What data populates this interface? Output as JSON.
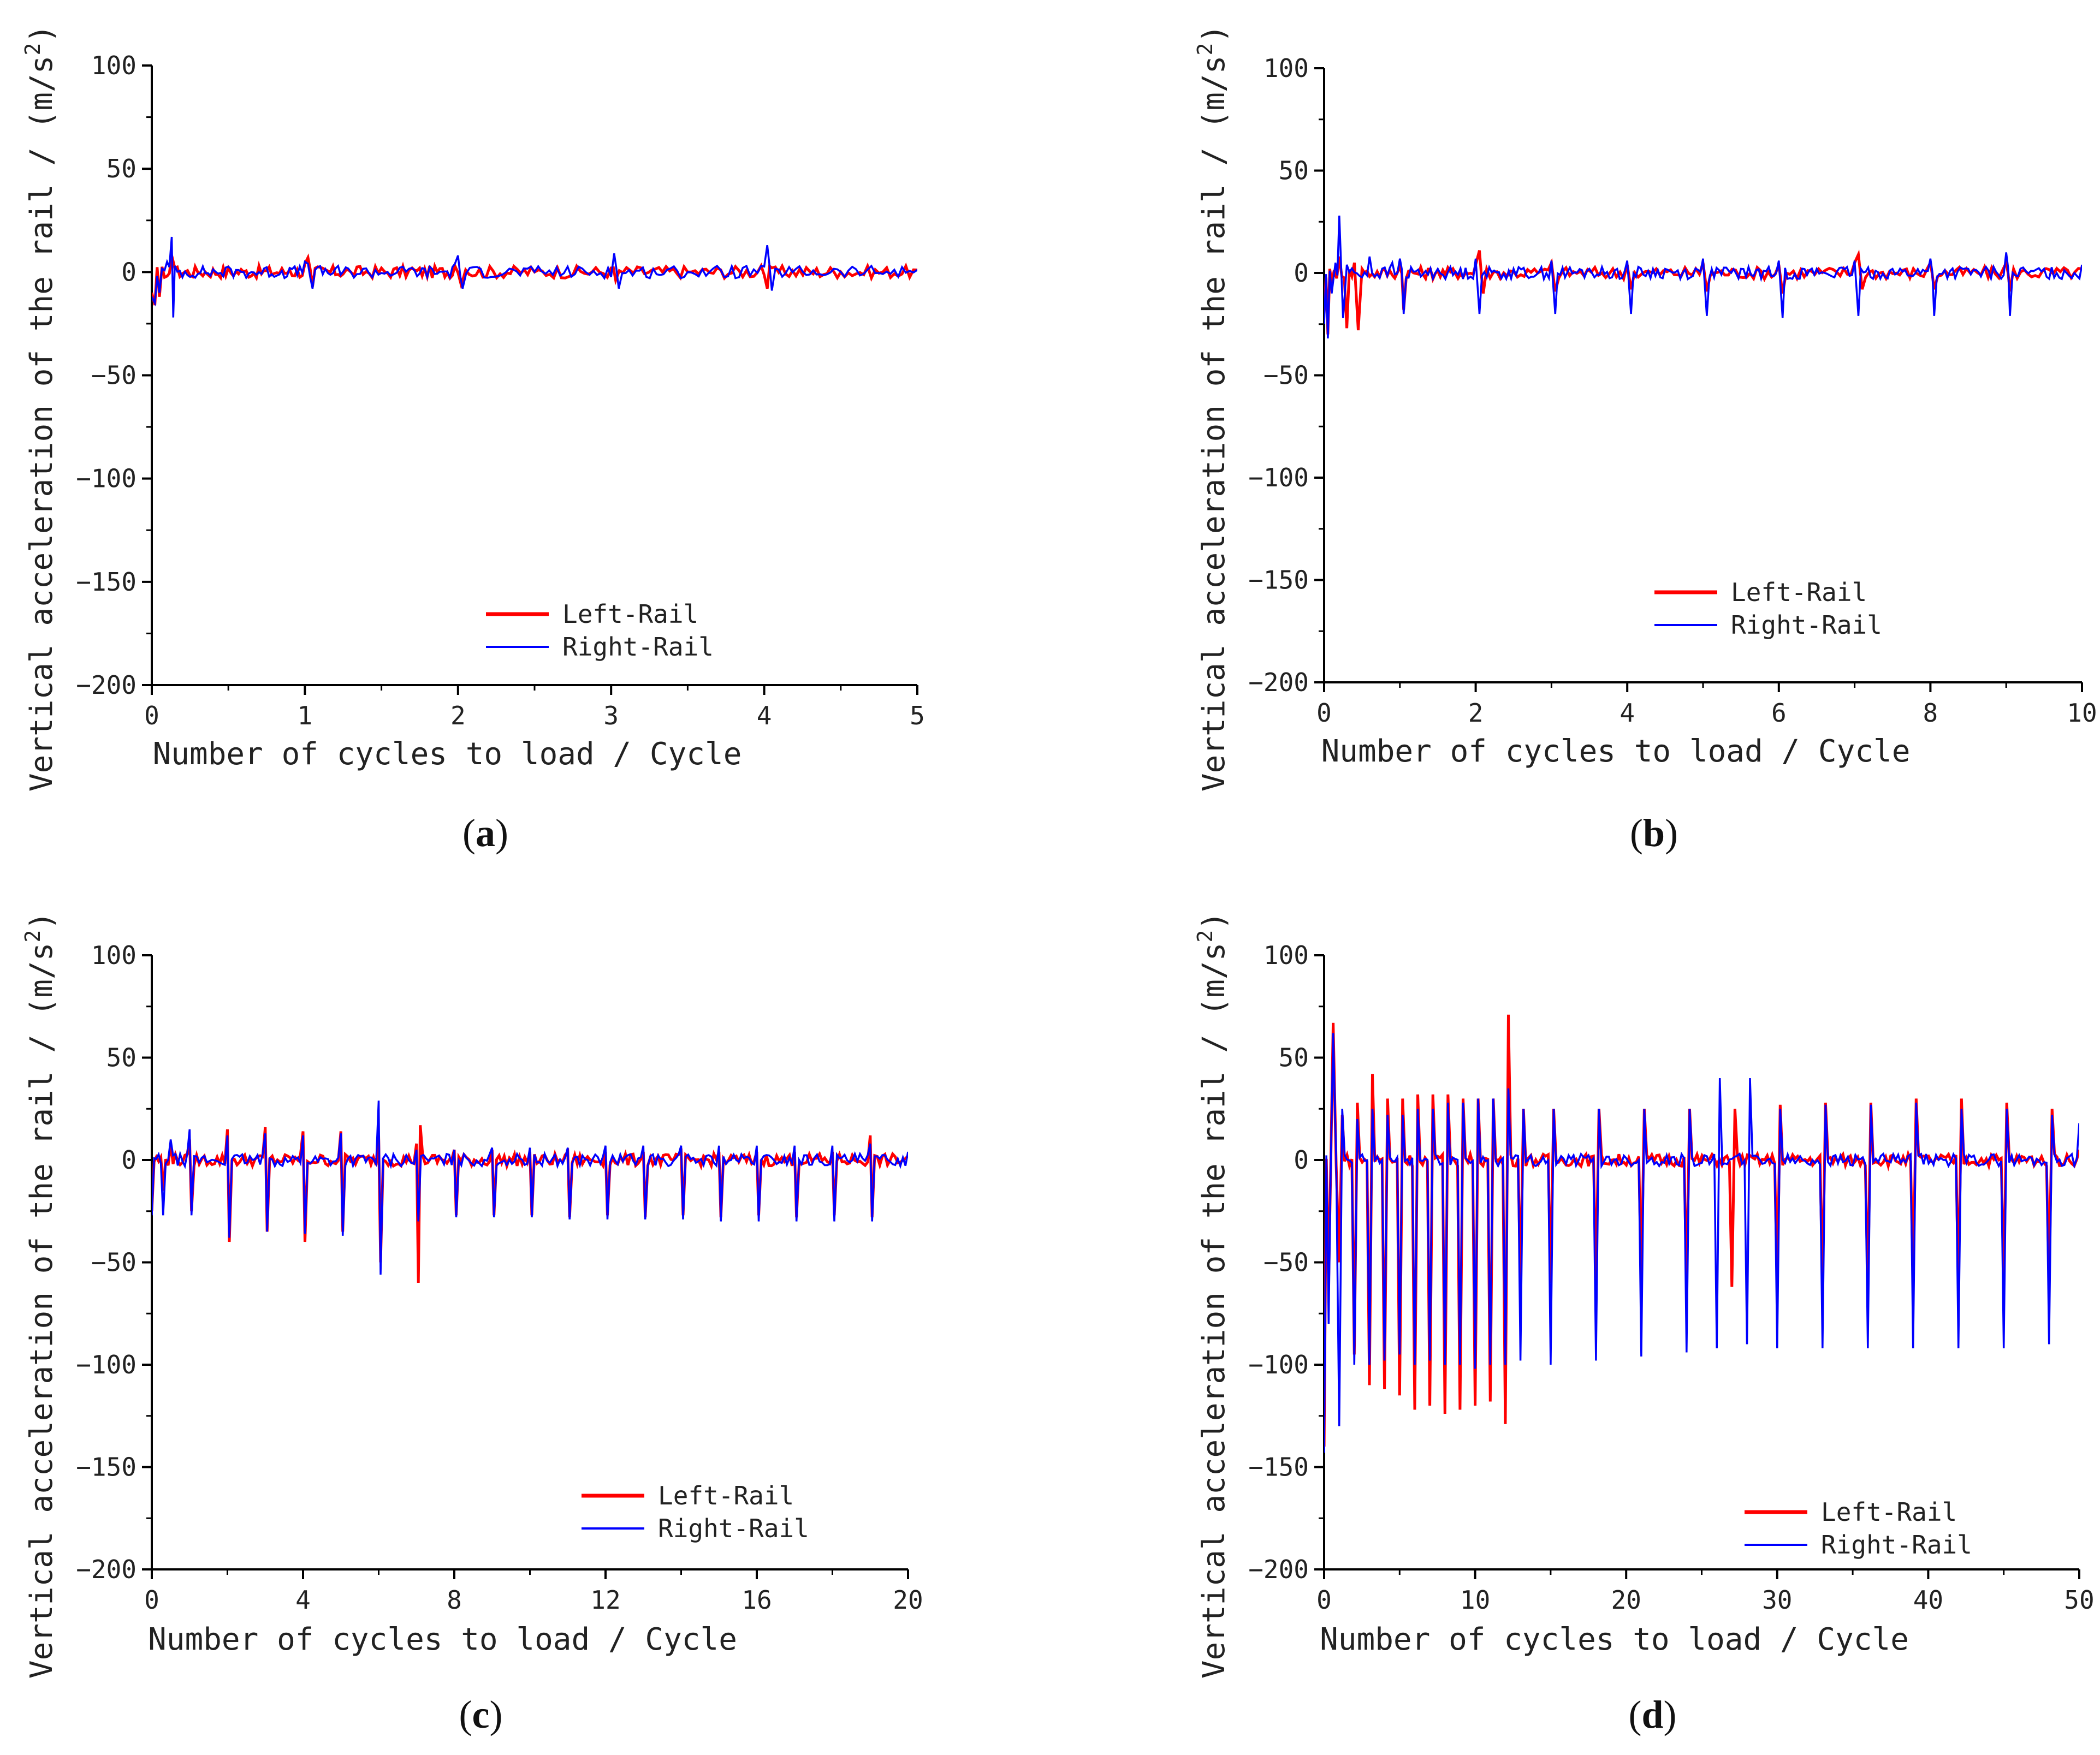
{
  "chart_data": [
    {
      "type": "line",
      "panel_label": "a",
      "xlabel": "Number of cycles to load / Cycle",
      "ylabel": "Vertical acceleration of the rail / (m/s",
      "ylabel_sup": "2",
      "ylabel_close": ")",
      "xlim": [
        0,
        5
      ],
      "ylim": [
        -200,
        100
      ],
      "xticks": [
        0,
        1,
        2,
        3,
        4,
        5
      ],
      "xtick_labels": [
        "0",
        "1",
        "2",
        "3",
        "4",
        "5"
      ],
      "yticks": [
        -200,
        -150,
        -100,
        -50,
        0,
        50,
        100
      ],
      "ytick_labels": [
        "−200",
        "−150",
        "−100",
        "−50",
        "0",
        "50",
        "100"
      ],
      "legend": [
        "Left-Rail",
        "Right-Rail"
      ],
      "legend_position": "lower-center",
      "grid": false,
      "series": [
        {
          "name": "Left-Rail",
          "color": "#ff0000",
          "x": [
            0,
            0.02,
            0.05,
            0.1,
            0.13,
            0.15,
            0.3,
            0.6,
            0.9,
            1.0,
            1.02,
            1.05,
            1.3,
            1.7,
            1.98,
            2.02,
            2.05,
            2.5,
            3.0,
            3.03,
            3.5,
            3.98,
            4.02,
            4.05,
            4.5,
            5.0
          ],
          "values": [
            -10,
            -16,
            -12,
            -2,
            8,
            2,
            0,
            0,
            1,
            4,
            7,
            -7,
            0,
            2,
            3,
            -6,
            1,
            0,
            2,
            -4,
            0,
            3,
            -8,
            2,
            0,
            1
          ]
        },
        {
          "name": "Right-Rail",
          "color": "#0000ff",
          "x": [
            0,
            0.02,
            0.05,
            0.1,
            0.13,
            0.14,
            0.15,
            0.3,
            0.6,
            0.9,
            1.0,
            1.02,
            1.05,
            1.3,
            1.7,
            1.98,
            2.0,
            2.03,
            2.5,
            2.98,
            3.02,
            3.05,
            3.5,
            3.98,
            4.02,
            4.05,
            4.5,
            5.0
          ],
          "values": [
            -12,
            -15,
            -10,
            5,
            17,
            -22,
            3,
            -1,
            0,
            2,
            5,
            4,
            -8,
            0,
            2,
            4,
            8,
            -8,
            0,
            2,
            9,
            -8,
            0,
            3,
            13,
            -9,
            0,
            1
          ]
        }
      ]
    },
    {
      "type": "line",
      "panel_label": "b",
      "xlabel": "Number of cycles to load / Cycle",
      "ylabel": "Vertical acceleration of the rail / (m/s",
      "ylabel_sup": "2",
      "ylabel_close": ")",
      "xlim": [
        0,
        10
      ],
      "ylim": [
        -200,
        100
      ],
      "xticks": [
        0,
        2,
        4,
        6,
        8,
        10
      ],
      "xtick_labels": [
        "0",
        "2",
        "4",
        "6",
        "8",
        "10"
      ],
      "yticks": [
        -200,
        -150,
        -100,
        -50,
        0,
        50,
        100
      ],
      "ytick_labels": [
        "−200",
        "−150",
        "−100",
        "−50",
        "0",
        "50",
        "100"
      ],
      "legend": [
        "Left-Rail",
        "Right-Rail"
      ],
      "legend_position": "lower-center",
      "grid": false,
      "series": [
        {
          "name": "Left-Rail",
          "color": "#ff0000",
          "x": [
            0,
            0.05,
            0.1,
            0.2,
            0.3,
            0.4,
            0.45,
            0.5,
            1.0,
            1.05,
            1.5,
            2.0,
            2.05,
            2.1,
            3.0,
            3.05,
            4.0,
            4.05,
            5.0,
            5.05,
            6.0,
            6.05,
            7.0,
            7.05,
            7.1,
            8.0,
            8.05,
            9.0,
            9.05,
            10.0
          ],
          "values": [
            -20,
            -30,
            -5,
            8,
            -27,
            5,
            -28,
            2,
            3,
            -18,
            1,
            4,
            11,
            -10,
            5,
            -9,
            4,
            -8,
            5,
            -9,
            4,
            -10,
            5,
            9,
            -8,
            5,
            -8,
            5,
            -9,
            2
          ]
        },
        {
          "name": "Right-Rail",
          "color": "#0000ff",
          "x": [
            0,
            0.05,
            0.1,
            0.15,
            0.2,
            0.25,
            0.3,
            0.6,
            0.9,
            1.0,
            1.05,
            1.5,
            2.0,
            2.05,
            2.5,
            3.0,
            3.05,
            3.5,
            4.0,
            4.05,
            4.5,
            5.0,
            5.05,
            5.5,
            6.0,
            6.05,
            6.5,
            7.0,
            7.05,
            7.5,
            8.0,
            8.05,
            8.5,
            9.0,
            9.05,
            9.5,
            10.0
          ],
          "values": [
            -25,
            -32,
            -10,
            5,
            28,
            -22,
            4,
            8,
            5,
            7,
            -20,
            2,
            7,
            -20,
            2,
            6,
            -20,
            2,
            6,
            -20,
            2,
            7,
            -21,
            2,
            6,
            -22,
            2,
            6,
            -21,
            2,
            7,
            -21,
            2,
            10,
            -21,
            2,
            4
          ]
        }
      ]
    },
    {
      "type": "line",
      "panel_label": "c",
      "xlabel": "Number of cycles to load / Cycle",
      "ylabel": "Vertical acceleration of the rail / (m/s",
      "ylabel_sup": "2",
      "ylabel_close": ")",
      "xlim": [
        0,
        20
      ],
      "ylim": [
        -200,
        100
      ],
      "xticks": [
        0,
        4,
        8,
        12,
        16,
        20
      ],
      "xtick_labels": [
        "0",
        "4",
        "8",
        "12",
        "16",
        "20"
      ],
      "yticks": [
        -200,
        -150,
        -100,
        -50,
        0,
        50,
        100
      ],
      "ytick_labels": [
        "−200",
        "−150",
        "−100",
        "−50",
        "0",
        "50",
        "100"
      ],
      "legend": [
        "Left-Rail",
        "Right-Rail"
      ],
      "legend_position": "lower-center",
      "grid": false,
      "series": [
        {
          "name": "Left-Rail",
          "color": "#ff0000",
          "x": [
            0,
            0.3,
            0.5,
            1.0,
            1.05,
            2.0,
            2.05,
            3.0,
            3.05,
            4.0,
            4.05,
            5.0,
            5.05,
            6.0,
            6.05,
            7.0,
            7.05,
            7.1,
            8.0,
            8.05,
            9.0,
            9.05,
            10.0,
            10.05,
            11.0,
            11.05,
            12.0,
            12.05,
            13.0,
            13.05,
            14.0,
            14.05,
            15.0,
            15.05,
            16.0,
            16.05,
            17.0,
            17.05,
            18.0,
            18.05,
            19.0,
            19.05,
            20.0
          ],
          "values": [
            -25,
            -15,
            8,
            10,
            -25,
            15,
            -40,
            16,
            -35,
            14,
            -40,
            14,
            -35,
            12,
            -50,
            8,
            -60,
            17,
            5,
            -27,
            5,
            -27,
            4,
            -27,
            4,
            -28,
            4,
            -27,
            4,
            -28,
            4,
            -27,
            4,
            -28,
            4,
            -27,
            4,
            -28,
            4,
            -27,
            12,
            -28,
            2
          ]
        },
        {
          "name": "Right-Rail",
          "color": "#0000ff",
          "x": [
            0,
            0.3,
            0.5,
            1.0,
            1.05,
            2.0,
            2.05,
            3.0,
            3.05,
            4.0,
            4.05,
            5.0,
            5.05,
            6.0,
            6.05,
            7.0,
            7.05,
            8.0,
            8.05,
            9.0,
            9.05,
            10.0,
            10.05,
            11.0,
            11.05,
            12.0,
            12.05,
            13.0,
            13.05,
            14.0,
            14.05,
            15.0,
            15.05,
            16.0,
            16.05,
            17.0,
            17.05,
            18.0,
            18.05,
            19.0,
            19.05,
            20.0
          ],
          "values": [
            -27,
            -27,
            10,
            15,
            -27,
            12,
            -38,
            13,
            -35,
            12,
            -36,
            13,
            -37,
            29,
            -56,
            5,
            -30,
            5,
            -28,
            6,
            -28,
            6,
            -28,
            6,
            -29,
            7,
            -29,
            7,
            -29,
            7,
            -29,
            7,
            -30,
            7,
            -30,
            7,
            -30,
            7,
            -30,
            8,
            -30,
            4
          ]
        }
      ]
    },
    {
      "type": "line",
      "panel_label": "d",
      "xlabel": "Number of cycles to load / Cycle",
      "ylabel": "Vertical acceleration of the rail / (m/s",
      "ylabel_sup": "2",
      "ylabel_close": ")",
      "xlim": [
        0,
        50
      ],
      "ylim": [
        -200,
        100
      ],
      "xticks": [
        0,
        10,
        20,
        30,
        40,
        50
      ],
      "xtick_labels": [
        "0",
        "10",
        "20",
        "30",
        "40",
        "50"
      ],
      "yticks": [
        -200,
        -150,
        -100,
        -50,
        0,
        50,
        100
      ],
      "ytick_labels": [
        "−200",
        "−150",
        "−100",
        "−50",
        "0",
        "50",
        "100"
      ],
      "legend": [
        "Left-Rail",
        "Right-Rail"
      ],
      "legend_position": "lower-right",
      "grid": false,
      "series": [
        {
          "name": "Left-Rail",
          "color": "#ff0000",
          "x": [
            0,
            0.3,
            0.6,
            1.0,
            1.2,
            2.0,
            2.2,
            3.0,
            3.2,
            4.0,
            4.2,
            5.0,
            5.2,
            6.0,
            6.2,
            7.0,
            7.2,
            8.0,
            8.2,
            9.0,
            9.2,
            10.0,
            10.2,
            11.0,
            11.2,
            12.0,
            12.2,
            13.0,
            13.2,
            15.0,
            15.2,
            18.0,
            18.2,
            21.0,
            21.2,
            24.0,
            24.2,
            27.0,
            27.2,
            30.0,
            30.2,
            33.0,
            33.2,
            36.0,
            36.2,
            39.0,
            39.2,
            42.0,
            42.2,
            45.0,
            45.2,
            48.0,
            48.2,
            50.0
          ],
          "values": [
            -140,
            -60,
            67,
            -50,
            22,
            -95,
            28,
            -110,
            42,
            -112,
            30,
            -115,
            30,
            -122,
            32,
            -120,
            32,
            -124,
            32,
            -122,
            30,
            -120,
            30,
            -118,
            30,
            -129,
            71,
            -60,
            25,
            -60,
            25,
            -60,
            25,
            -60,
            25,
            -62,
            25,
            -62,
            25,
            -62,
            27,
            -62,
            28,
            -62,
            28,
            -62,
            30,
            -62,
            30,
            -62,
            28,
            -62,
            25,
            5
          ]
        },
        {
          "name": "Right-Rail",
          "color": "#0000ff",
          "x": [
            0,
            0.3,
            0.6,
            1.0,
            1.2,
            2.0,
            2.2,
            3.0,
            3.2,
            4.0,
            4.2,
            5.0,
            5.2,
            6.0,
            6.2,
            7.0,
            7.2,
            8.0,
            8.2,
            9.0,
            9.2,
            10.0,
            10.2,
            11.0,
            11.2,
            12.0,
            12.2,
            13.0,
            13.2,
            15.0,
            15.2,
            18.0,
            18.2,
            21.0,
            21.2,
            24.0,
            24.2,
            26.0,
            26.2,
            28.0,
            28.2,
            30.0,
            30.2,
            33.0,
            33.2,
            36.0,
            36.2,
            39.0,
            39.2,
            42.0,
            42.2,
            45.0,
            45.2,
            48.0,
            48.2,
            50.0
          ],
          "values": [
            -143,
            -80,
            62,
            -130,
            25,
            -100,
            20,
            -100,
            25,
            -98,
            22,
            -95,
            22,
            -100,
            25,
            -98,
            25,
            -100,
            28,
            -100,
            28,
            -102,
            30,
            -100,
            30,
            -100,
            35,
            -98,
            25,
            -100,
            25,
            -98,
            25,
            -96,
            25,
            -94,
            25,
            -92,
            40,
            -90,
            40,
            -92,
            25,
            -92,
            27,
            -92,
            27,
            -92,
            28,
            -92,
            25,
            -92,
            25,
            -90,
            22,
            18
          ]
        }
      ]
    }
  ]
}
